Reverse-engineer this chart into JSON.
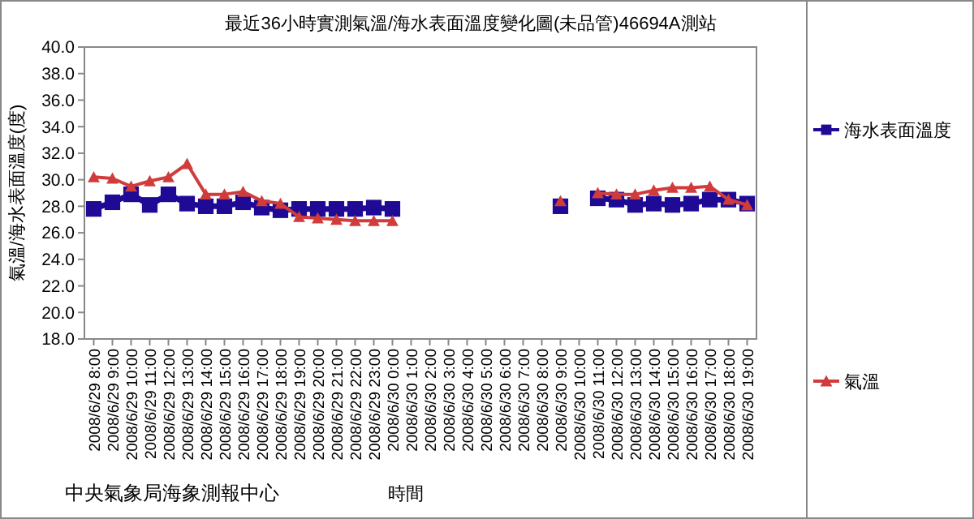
{
  "chart_data": {
    "type": "line",
    "title": "最近36小時實測氣溫/海水表面溫度變化圖(未品管)46694A測站",
    "xlabel": "時間",
    "ylabel": "氣溫/海水表面溫度(度)",
    "categories": [
      "2008/6/29 8:00",
      "2008/6/29 9:00",
      "2008/6/29 10:00",
      "2008/6/29 11:00",
      "2008/6/29 12:00",
      "2008/6/29 13:00",
      "2008/6/29 14:00",
      "2008/6/29 15:00",
      "2008/6/29 16:00",
      "2008/6/29 17:00",
      "2008/6/29 18:00",
      "2008/6/29 19:00",
      "2008/6/29 20:00",
      "2008/6/29 21:00",
      "2008/6/29 22:00",
      "2008/6/29 23:00",
      "2008/6/30 0:00",
      "2008/6/30 1:00",
      "2008/6/30 2:00",
      "2008/6/30 3:00",
      "2008/6/30 4:00",
      "2008/6/30 5:00",
      "2008/6/30 6:00",
      "2008/6/30 7:00",
      "2008/6/30 8:00",
      "2008/6/30 9:00",
      "2008/6/30 10:00",
      "2008/6/30 11:00",
      "2008/6/30 12:00",
      "2008/6/30 13:00",
      "2008/6/30 14:00",
      "2008/6/30 15:00",
      "2008/6/30 16:00",
      "2008/6/30 17:00",
      "2008/6/30 18:00",
      "2008/6/30 19:00"
    ],
    "series": [
      {
        "name": "海水表面溫度",
        "color": "#1f0a96",
        "marker": "square",
        "values": [
          27.8,
          28.3,
          28.9,
          28.1,
          28.9,
          28.2,
          28.0,
          28.0,
          28.3,
          27.9,
          27.7,
          27.8,
          27.8,
          27.8,
          27.8,
          27.9,
          27.8,
          null,
          null,
          null,
          null,
          null,
          null,
          null,
          null,
          28.0,
          null,
          28.6,
          28.5,
          28.1,
          28.2,
          28.1,
          28.2,
          28.5,
          28.5,
          28.2
        ]
      },
      {
        "name": "氣溫",
        "color": "#d03c3c",
        "marker": "triangle",
        "values": [
          30.2,
          30.1,
          29.5,
          29.9,
          30.2,
          31.2,
          28.9,
          28.9,
          29.1,
          28.4,
          28.2,
          27.2,
          27.1,
          27.0,
          26.9,
          26.9,
          26.9,
          null,
          null,
          null,
          null,
          null,
          null,
          null,
          null,
          28.4,
          null,
          29.0,
          28.9,
          28.9,
          29.2,
          29.4,
          29.4,
          29.5,
          28.5,
          28.1
        ]
      }
    ],
    "ylim": [
      18,
      40
    ],
    "yticks": [
      {
        "value": 18,
        "label": "18.0"
      },
      {
        "value": 20,
        "label": "20.0"
      },
      {
        "value": 22,
        "label": "22.0"
      },
      {
        "value": 24,
        "label": "24.0"
      },
      {
        "value": 26,
        "label": "26.0"
      },
      {
        "value": 28,
        "label": "28.0"
      },
      {
        "value": 30,
        "label": "30.0"
      },
      {
        "value": 32,
        "label": "32.0"
      },
      {
        "value": 34,
        "label": "34.0"
      },
      {
        "value": 36,
        "label": "36.0"
      },
      {
        "value": 38,
        "label": "38.0"
      },
      {
        "value": 40,
        "label": "40.0"
      }
    ],
    "grid": false,
    "legend": "right",
    "annotations": [
      "中央氣象局海象測報中心"
    ]
  }
}
